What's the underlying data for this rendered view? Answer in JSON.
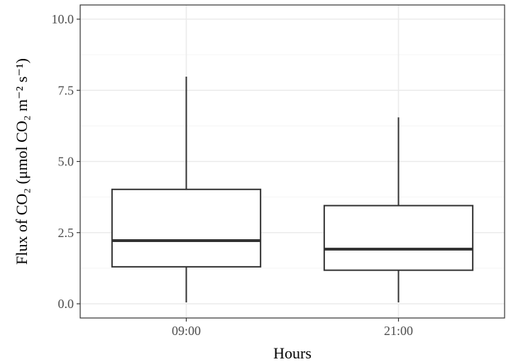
{
  "chart_data": {
    "type": "box",
    "title": "",
    "xlabel": "Hours",
    "ylabel": "Flux of CO₂ (μmol CO₂ m⁻² s⁻¹)",
    "ylim": [
      0,
      10
    ],
    "yticks": [
      "0.0",
      "2.5",
      "5.0",
      "7.5",
      "10.0"
    ],
    "categories": [
      "09:00",
      "21:00"
    ],
    "boxes": [
      {
        "category": "09:00",
        "min": 0.05,
        "q1": 1.3,
        "median": 2.22,
        "q3": 4.02,
        "max": 7.98
      },
      {
        "category": "21:00",
        "min": 0.05,
        "q1": 1.18,
        "median": 1.92,
        "q3": 3.45,
        "max": 6.55
      }
    ],
    "grid": true,
    "colors": {
      "box_stroke": "#333333",
      "grid": "#ebebeb",
      "panel_border": "#333333"
    }
  }
}
